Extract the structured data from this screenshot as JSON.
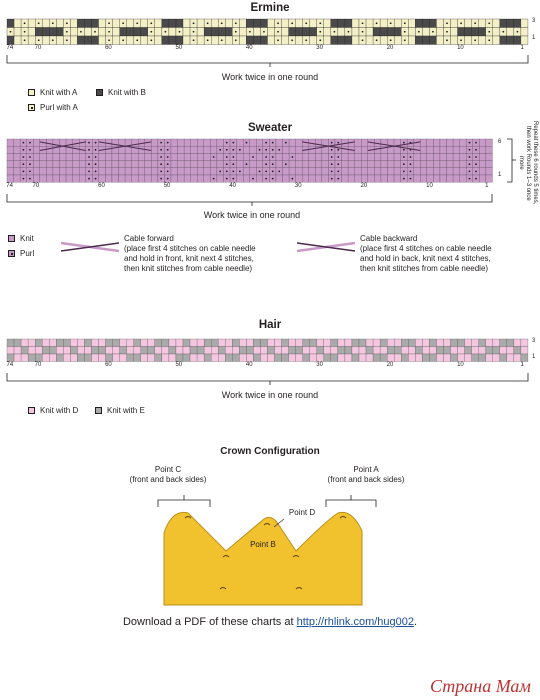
{
  "ermine": {
    "title": "Ermine",
    "note": "Work twice in one round",
    "colors": {
      "knit_a": "#f3f0c8",
      "knit_b": "#4a4a4a"
    },
    "legend": [
      {
        "label": "Knit with A",
        "type": "knit_a"
      },
      {
        "label": "Knit with B",
        "type": "knit_b"
      },
      {
        "label": "Purl with A",
        "type": "purl_a"
      }
    ]
  },
  "sweater": {
    "title": "Sweater",
    "note": "Work twice in one round",
    "side_note": "Repeat these 6 rounds 5 times, then work Rounds 1–3 once more",
    "colors": {
      "knit": "#c79ac8",
      "grid": "#5a4a5a"
    },
    "legend": [
      {
        "label": "Knit",
        "type": "knit"
      },
      {
        "label": "Purl",
        "type": "purl"
      }
    ],
    "cable_forward": {
      "title": "Cable forward",
      "lines": [
        "(place first 4 stitches on cable needle",
        "and hold in front, knit next 4 stitches,",
        "then knit stitches from cable needle)"
      ]
    },
    "cable_backward": {
      "title": "Cable backward",
      "lines": [
        "(place first 4 stitches on cable needle",
        "and hold in back, knit next 4 stitches,",
        "then knit stitches from cable needle)"
      ]
    }
  },
  "hair": {
    "title": "Hair",
    "note": "Work twice in one round",
    "colors": {
      "knit_d": "#f4c6e0",
      "knit_e": "#aaaaaa"
    },
    "legend": [
      {
        "label": "Knit with D",
        "type": "knit_d"
      },
      {
        "label": "Knit with E",
        "type": "knit_e"
      }
    ]
  },
  "axis": {
    "stitch_labels": [
      "74",
      "70",
      "60",
      "50",
      "40",
      "30",
      "20",
      "10",
      "1"
    ],
    "ermine_rounds": [
      "3",
      "1"
    ],
    "sweater_rounds": [
      "6",
      "1"
    ],
    "hair_rounds": [
      "3",
      "1"
    ]
  },
  "crown": {
    "title": "Crown Configuration",
    "color": "#f2c12e",
    "point_c": [
      "Point C",
      "(front and back sides)"
    ],
    "point_a": [
      "Point A",
      "(front and back sides)"
    ],
    "point_d": "Point D",
    "point_b": "Point B"
  },
  "footer": {
    "text": "Download a PDF of these charts at ",
    "link": "http://rhlink.com/hug002",
    "end": "."
  },
  "watermark": "Страна Мам"
}
